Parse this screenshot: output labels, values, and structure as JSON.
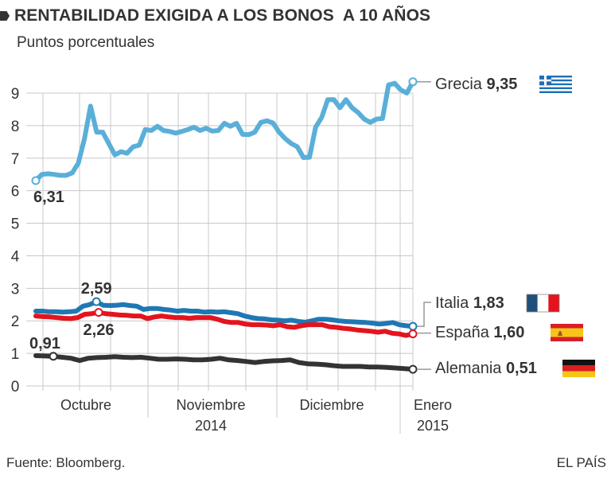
{
  "header": {
    "title": "RENTABILIDAD EXIGIDA A LOS BONOS  A 10 AÑOS",
    "subtitle": "Puntos porcentuales"
  },
  "footer": {
    "source": "Fuente: Bloomberg.",
    "brand": "EL PAÍS"
  },
  "chart_data": {
    "type": "line",
    "title": "RENTABILIDAD EXIGIDA A LOS BONOS  A 10 AÑOS",
    "subtitle": "Puntos porcentuales",
    "ylabel": "Puntos porcentuales",
    "xlabel": "",
    "ylim": [
      0,
      9
    ],
    "yticks": [
      "0",
      "1",
      "2",
      "3",
      "4",
      "5",
      "6",
      "7",
      "8",
      "9"
    ],
    "grid": true,
    "x_period": "Sept 2014 – Ene 2015 (daily)",
    "x_month_labels": [
      {
        "label": "Octubre",
        "sub": ""
      },
      {
        "label": "Noviembre",
        "sub": "2014"
      },
      {
        "label": "Diciembre",
        "sub": ""
      },
      {
        "label": "Enero",
        "sub": "2015"
      }
    ],
    "series": [
      {
        "name": "Grecia",
        "color": "#5aafd8",
        "end_value": 9.35,
        "end_label": "9,35",
        "start_label": "6,31",
        "flag": "greece",
        "values": [
          6.31,
          6.5,
          6.52,
          6.5,
          6.47,
          6.47,
          6.55,
          6.85,
          7.6,
          8.6,
          7.8,
          7.8,
          7.45,
          7.1,
          7.2,
          7.15,
          7.35,
          7.4,
          7.88,
          7.85,
          7.98,
          7.85,
          7.82,
          7.77,
          7.82,
          7.88,
          7.95,
          7.85,
          7.92,
          7.83,
          7.85,
          8.07,
          7.98,
          8.07,
          7.73,
          7.72,
          7.8,
          8.1,
          8.15,
          8.08,
          7.8,
          7.6,
          7.45,
          7.35,
          7.02,
          7.03,
          7.95,
          8.25,
          8.8,
          8.8,
          8.55,
          8.8,
          8.55,
          8.4,
          8.2,
          8.1,
          8.2,
          8.22,
          9.25,
          9.3,
          9.1,
          9.0,
          9.35
        ]
      },
      {
        "name": "Italia",
        "color": "#1f78b4",
        "end_value": 1.83,
        "end_label": "1,83",
        "annotated_value": 2.59,
        "annotated_label": "2,59",
        "flag": "italy",
        "values": [
          2.3,
          2.3,
          2.28,
          2.28,
          2.27,
          2.28,
          2.3,
          2.45,
          2.5,
          2.59,
          2.48,
          2.47,
          2.48,
          2.5,
          2.47,
          2.45,
          2.35,
          2.38,
          2.38,
          2.35,
          2.33,
          2.3,
          2.32,
          2.3,
          2.3,
          2.27,
          2.28,
          2.27,
          2.28,
          2.25,
          2.22,
          2.15,
          2.1,
          2.07,
          2.06,
          2.03,
          2.02,
          2.0,
          2.02,
          1.98,
          1.96,
          2.0,
          2.05,
          2.05,
          2.03,
          2.0,
          1.98,
          1.97,
          1.96,
          1.95,
          1.93,
          1.9,
          1.92,
          1.95,
          1.88,
          1.85,
          1.83
        ]
      },
      {
        "name": "España",
        "color": "#e3141e",
        "end_value": 1.6,
        "end_label": "1,60",
        "annotated_value": 2.26,
        "annotated_label": "2,26",
        "flag": "spain",
        "values": [
          2.15,
          2.13,
          2.12,
          2.1,
          2.08,
          2.07,
          2.1,
          2.2,
          2.22,
          2.26,
          2.22,
          2.2,
          2.18,
          2.17,
          2.15,
          2.15,
          2.07,
          2.12,
          2.15,
          2.12,
          2.1,
          2.1,
          2.08,
          2.1,
          2.1,
          2.1,
          2.05,
          1.98,
          1.95,
          1.95,
          1.9,
          1.88,
          1.88,
          1.87,
          1.85,
          1.88,
          1.82,
          1.8,
          1.85,
          1.88,
          1.88,
          1.88,
          1.82,
          1.8,
          1.77,
          1.75,
          1.72,
          1.7,
          1.68,
          1.65,
          1.68,
          1.62,
          1.6,
          1.55,
          1.6
        ]
      },
      {
        "name": "Alemania",
        "color": "#333333",
        "end_value": 0.51,
        "end_label": "0,51",
        "start_annotated_value": 0.91,
        "start_label": "0,91",
        "flag": "germany",
        "values": [
          0.93,
          0.92,
          0.91,
          0.88,
          0.85,
          0.78,
          0.85,
          0.87,
          0.88,
          0.9,
          0.88,
          0.87,
          0.88,
          0.85,
          0.82,
          0.82,
          0.83,
          0.82,
          0.8,
          0.8,
          0.82,
          0.85,
          0.8,
          0.78,
          0.75,
          0.72,
          0.75,
          0.77,
          0.78,
          0.8,
          0.72,
          0.68,
          0.67,
          0.65,
          0.62,
          0.6,
          0.6,
          0.6,
          0.58,
          0.58,
          0.57,
          0.55,
          0.53,
          0.51
        ]
      }
    ],
    "legend": "right, at line ends"
  },
  "legend_items": [
    {
      "name": "Grecia",
      "value": "9,35",
      "flag": "greece-flag-icon"
    },
    {
      "name": "Italia",
      "value": "1,83",
      "flag": "italy-flag-icon"
    },
    {
      "name": "España",
      "value": "1,60",
      "flag": "spain-flag-icon"
    },
    {
      "name": "Alemania",
      "value": "0,51",
      "flag": "germany-flag-icon"
    }
  ],
  "colors": {
    "grid": "#c8c8c8",
    "text": "#333333",
    "greece": "#5aafd8",
    "italy": "#1f78b4",
    "spain": "#e3141e",
    "germany": "#333333"
  }
}
